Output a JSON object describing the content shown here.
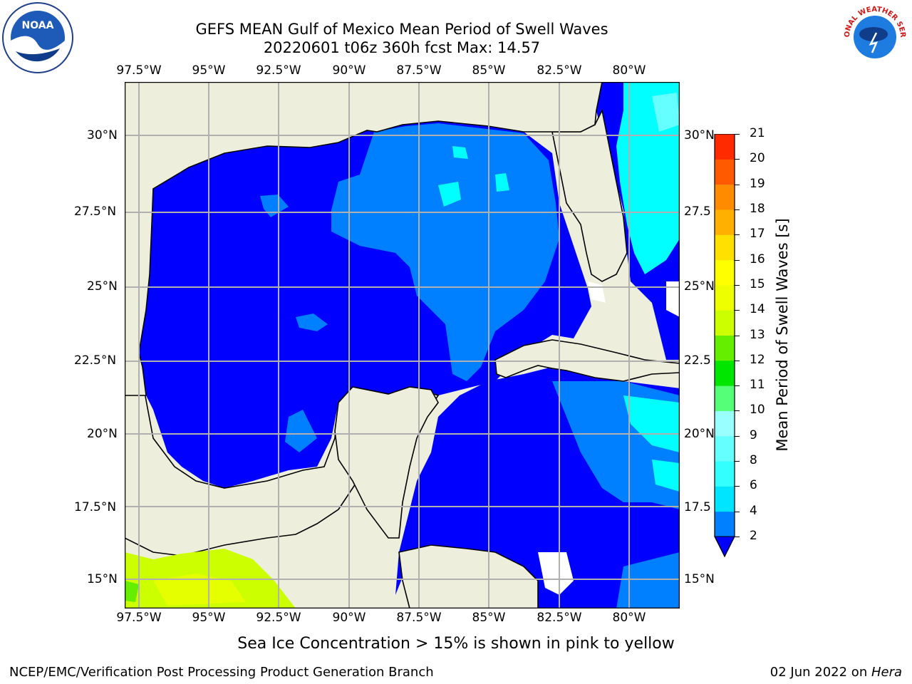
{
  "header": {
    "title_line1": "GEFS MEAN Gulf of Mexico Mean Period of Swell Waves",
    "title_line2": "20220601 t06z 360h fcst   Max: 14.57"
  },
  "logos": {
    "left": "NOAA",
    "right": "NATIONAL WEATHER SERVICE"
  },
  "map": {
    "lon_labels": [
      "97.5°W",
      "95°W",
      "92.5°W",
      "90°W",
      "87.5°W",
      "85°W",
      "82.5°W",
      "80°W"
    ],
    "lat_labels_left": [
      "30°N",
      "27.5°N",
      "25°N",
      "22.5°N",
      "20°N",
      "17.5°N",
      "15°N"
    ],
    "lat_labels_right": [
      "30°N",
      "27.5",
      "25°N",
      "22.5",
      "20°N",
      "17.5",
      "15°N"
    ],
    "colors": {
      "land": "#eeeedc",
      "deep_blue": "#0000ff",
      "mid_blue": "#0080ff",
      "cyan": "#00ffff",
      "light_cyan": "#66ffff",
      "yellow_green": "#ccff00",
      "lime": "#e5ff00",
      "grid": "#b0b0b0"
    }
  },
  "colorbar": {
    "label": "Mean Period of Swell Waves [s]",
    "ticks": [
      "2",
      "4",
      "6",
      "8",
      "9",
      "10",
      "11",
      "12",
      "13",
      "14",
      "15",
      "16",
      "17",
      "18",
      "19",
      "20",
      "21"
    ],
    "bands": [
      "#0080ff",
      "#00e5ff",
      "#33ffff",
      "#66ffff",
      "#99ffff",
      "#55ff77",
      "#00e600",
      "#66ee00",
      "#ccff00",
      "#eeff00",
      "#ffff00",
      "#ffe000",
      "#ffb000",
      "#ff8c00",
      "#ff5a00",
      "#ff2a00"
    ]
  },
  "note": "Sea Ice Concentration > 15% is shown in pink to yellow",
  "footer": {
    "left": "NCEP/EMC/Verification Post Processing Product Generation Branch",
    "right_date": "02 Jun 2022 on ",
    "right_host": "Hera"
  }
}
